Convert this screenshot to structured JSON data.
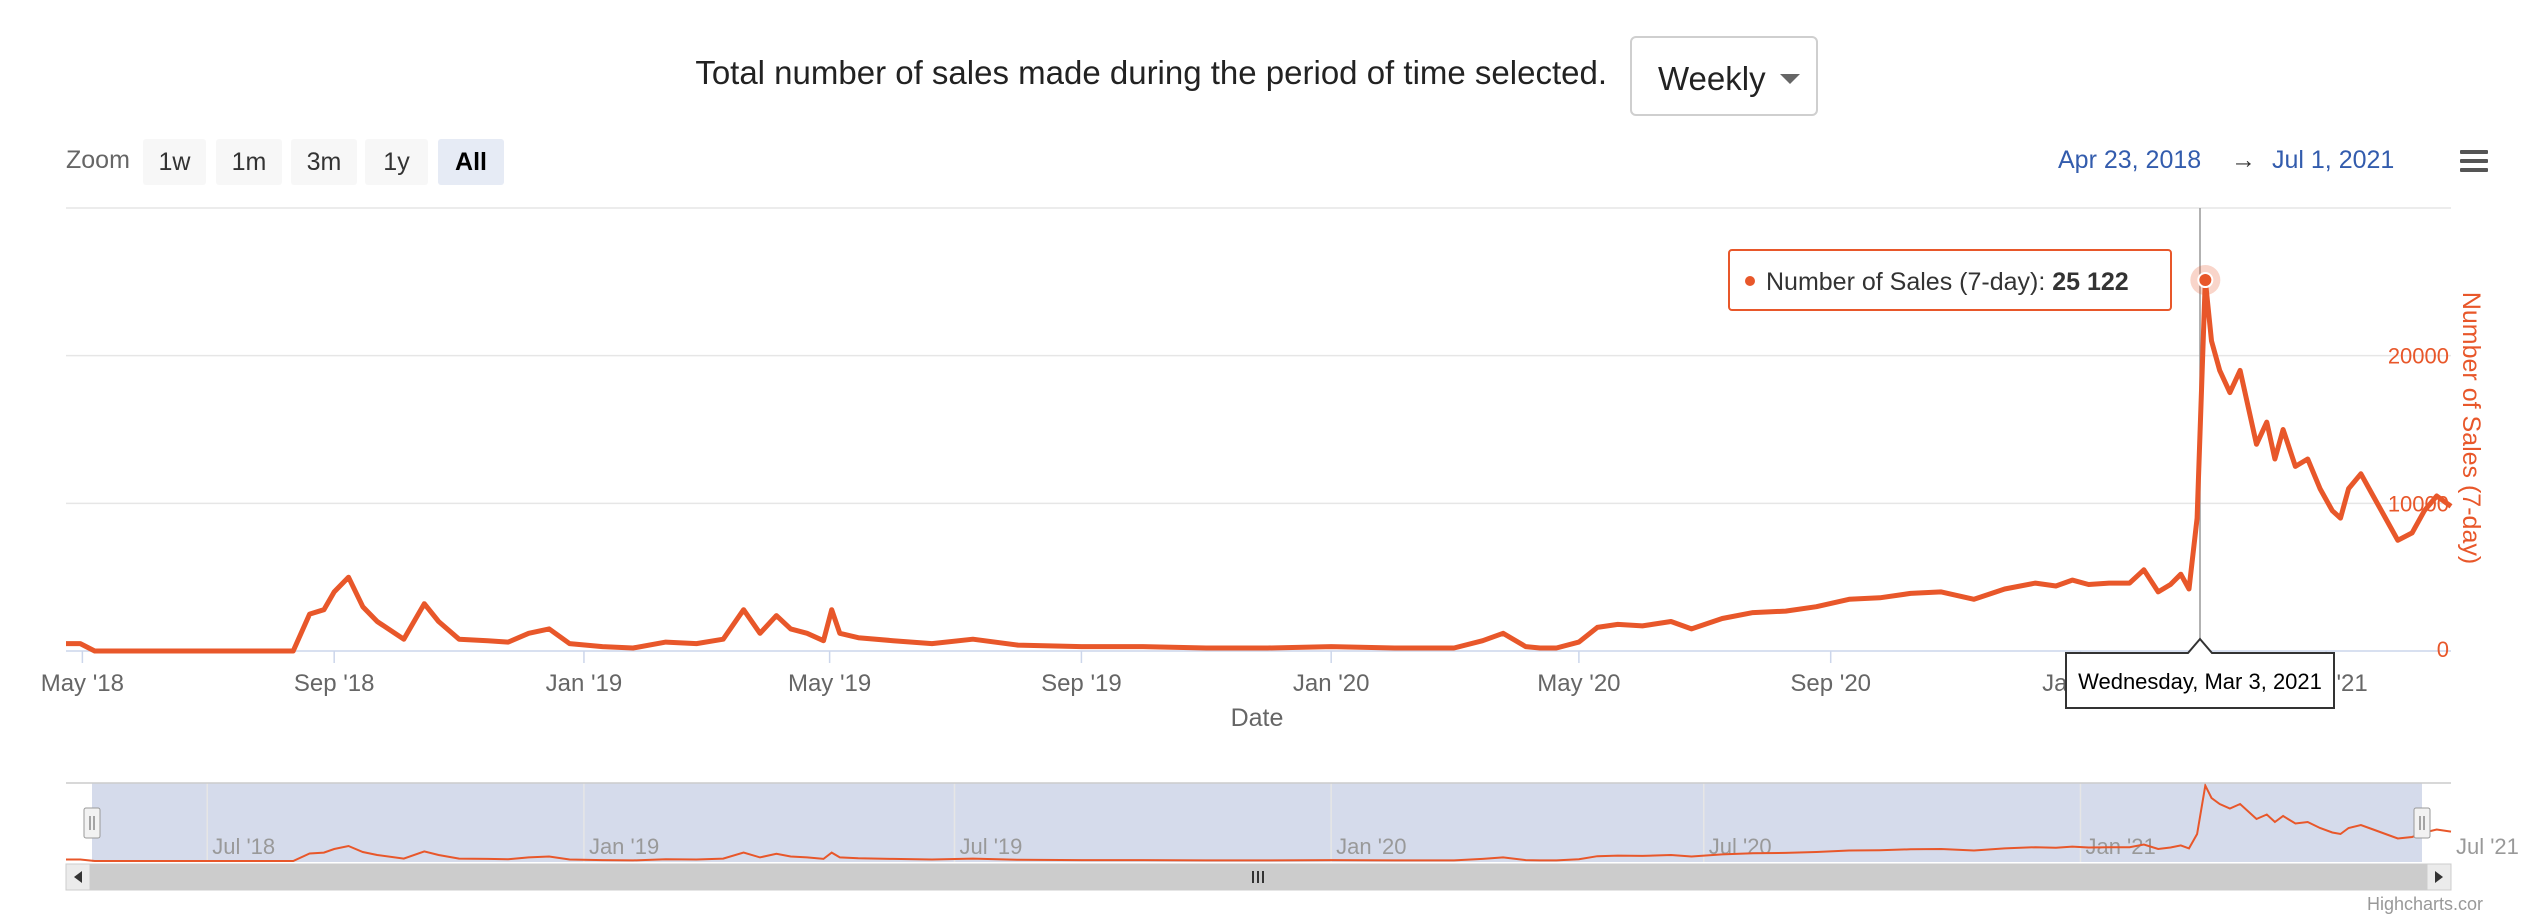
{
  "header": {
    "description": "Total number of sales made during the period of time selected.",
    "period_select": "Weekly"
  },
  "zoom": {
    "label": "Zoom",
    "buttons": [
      "1w",
      "1m",
      "3m",
      "1y",
      "All"
    ],
    "active": "All"
  },
  "range": {
    "from": "Apr 23, 2018",
    "arrow": "→",
    "to": "Jul 1, 2021"
  },
  "colors": {
    "series": "#e8572a",
    "axis_text": "#666666",
    "navigator_mask": "#d5dbeb"
  },
  "tooltip": {
    "date": "Wednesday, Mar 3, 2021",
    "series_label": "Number of Sales (7-day)",
    "value": "25 122"
  },
  "credits": "Highcharts.cor",
  "chart_data": {
    "type": "line",
    "xlabel": "Date",
    "ylabel": "Number of Sales (7-day)",
    "ylim": [
      0,
      30000
    ],
    "yticks": [
      0,
      10000,
      20000
    ],
    "xrange": [
      "2018-04-23",
      "2021-07-01"
    ],
    "xticks": [
      {
        "date": "2018-05-01",
        "label": "May '18"
      },
      {
        "date": "2018-09-01",
        "label": "Sep '18"
      },
      {
        "date": "2019-01-01",
        "label": "Jan '19"
      },
      {
        "date": "2019-05-01",
        "label": "May '19"
      },
      {
        "date": "2019-09-01",
        "label": "Sep '19"
      },
      {
        "date": "2020-01-01",
        "label": "Jan '20"
      },
      {
        "date": "2020-05-01",
        "label": "May '20"
      },
      {
        "date": "2020-09-01",
        "label": "Sep '20"
      },
      {
        "date": "2021-01-01",
        "label": "Jan '21"
      },
      {
        "date": "2021-05-01",
        "label": "May '21"
      }
    ],
    "navigator_ticks": [
      {
        "date": "2018-07-01",
        "label": "Jul '18"
      },
      {
        "date": "2019-01-01",
        "label": "Jan '19"
      },
      {
        "date": "2019-07-01",
        "label": "Jul '19"
      },
      {
        "date": "2020-01-01",
        "label": "Jan '20"
      },
      {
        "date": "2020-07-01",
        "label": "Jul '20"
      },
      {
        "date": "2021-01-01",
        "label": "Jan '21"
      },
      {
        "date": "2021-07-01",
        "label": "Jul '21"
      }
    ],
    "highlight": {
      "x": "2021-03-03",
      "y": 25122
    },
    "series": [
      {
        "name": "Number of Sales (7-day)",
        "x": [
          "2018-04-23",
          "2018-04-30",
          "2018-05-07",
          "2018-06-01",
          "2018-07-01",
          "2018-08-12",
          "2018-08-20",
          "2018-08-27",
          "2018-09-01",
          "2018-09-08",
          "2018-09-15",
          "2018-09-22",
          "2018-10-05",
          "2018-10-15",
          "2018-10-22",
          "2018-11-01",
          "2018-11-15",
          "2018-11-25",
          "2018-12-05",
          "2018-12-15",
          "2018-12-25",
          "2019-01-10",
          "2019-01-25",
          "2019-02-10",
          "2019-02-25",
          "2019-03-10",
          "2019-03-20",
          "2019-03-28",
          "2019-04-05",
          "2019-04-12",
          "2019-04-20",
          "2019-04-28",
          "2019-05-02",
          "2019-05-06",
          "2019-05-15",
          "2019-06-01",
          "2019-06-20",
          "2019-07-10",
          "2019-08-01",
          "2019-09-01",
          "2019-10-01",
          "2019-11-01",
          "2019-12-01",
          "2020-01-01",
          "2020-02-01",
          "2020-03-01",
          "2020-03-15",
          "2020-03-25",
          "2020-04-05",
          "2020-04-12",
          "2020-04-20",
          "2020-05-01",
          "2020-05-10",
          "2020-05-20",
          "2020-06-01",
          "2020-06-15",
          "2020-06-25",
          "2020-07-10",
          "2020-07-25",
          "2020-08-10",
          "2020-08-25",
          "2020-09-10",
          "2020-09-25",
          "2020-10-10",
          "2020-10-25",
          "2020-11-10",
          "2020-11-25",
          "2020-12-10",
          "2020-12-20",
          "2020-12-28",
          "2021-01-05",
          "2021-01-15",
          "2021-01-25",
          "2021-02-01",
          "2021-02-08",
          "2021-02-14",
          "2021-02-19",
          "2021-02-23",
          "2021-02-27",
          "2021-03-03",
          "2021-03-06",
          "2021-03-10",
          "2021-03-15",
          "2021-03-20",
          "2021-03-28",
          "2021-04-02",
          "2021-04-06",
          "2021-04-10",
          "2021-04-16",
          "2021-04-22",
          "2021-04-28",
          "2021-05-04",
          "2021-05-08",
          "2021-05-12",
          "2021-05-18",
          "2021-05-24",
          "2021-05-30",
          "2021-06-05",
          "2021-06-12",
          "2021-06-18",
          "2021-06-24",
          "2021-07-01"
        ],
        "y": [
          500,
          500,
          0,
          0,
          0,
          0,
          2500,
          2800,
          4000,
          5000,
          3000,
          2000,
          800,
          3200,
          2000,
          800,
          700,
          600,
          1200,
          1500,
          500,
          300,
          200,
          600,
          500,
          800,
          2800,
          1200,
          2400,
          1500,
          1200,
          700,
          2800,
          1200,
          900,
          700,
          500,
          800,
          400,
          300,
          300,
          200,
          200,
          300,
          200,
          200,
          700,
          1200,
          300,
          200,
          200,
          600,
          1600,
          1800,
          1700,
          2000,
          1500,
          2200,
          2600,
          2700,
          3000,
          3500,
          3600,
          3900,
          4000,
          3500,
          4200,
          4600,
          4400,
          4800,
          4500,
          4600,
          4600,
          5500,
          4000,
          4500,
          5200,
          4200,
          9000,
          25122,
          21000,
          19000,
          17500,
          19000,
          14000,
          15500,
          13000,
          15000,
          12500,
          13000,
          11000,
          9500,
          9000,
          11000,
          12000,
          10500,
          9000,
          7500,
          8000,
          9500,
          10500,
          9800
        ]
      }
    ]
  }
}
